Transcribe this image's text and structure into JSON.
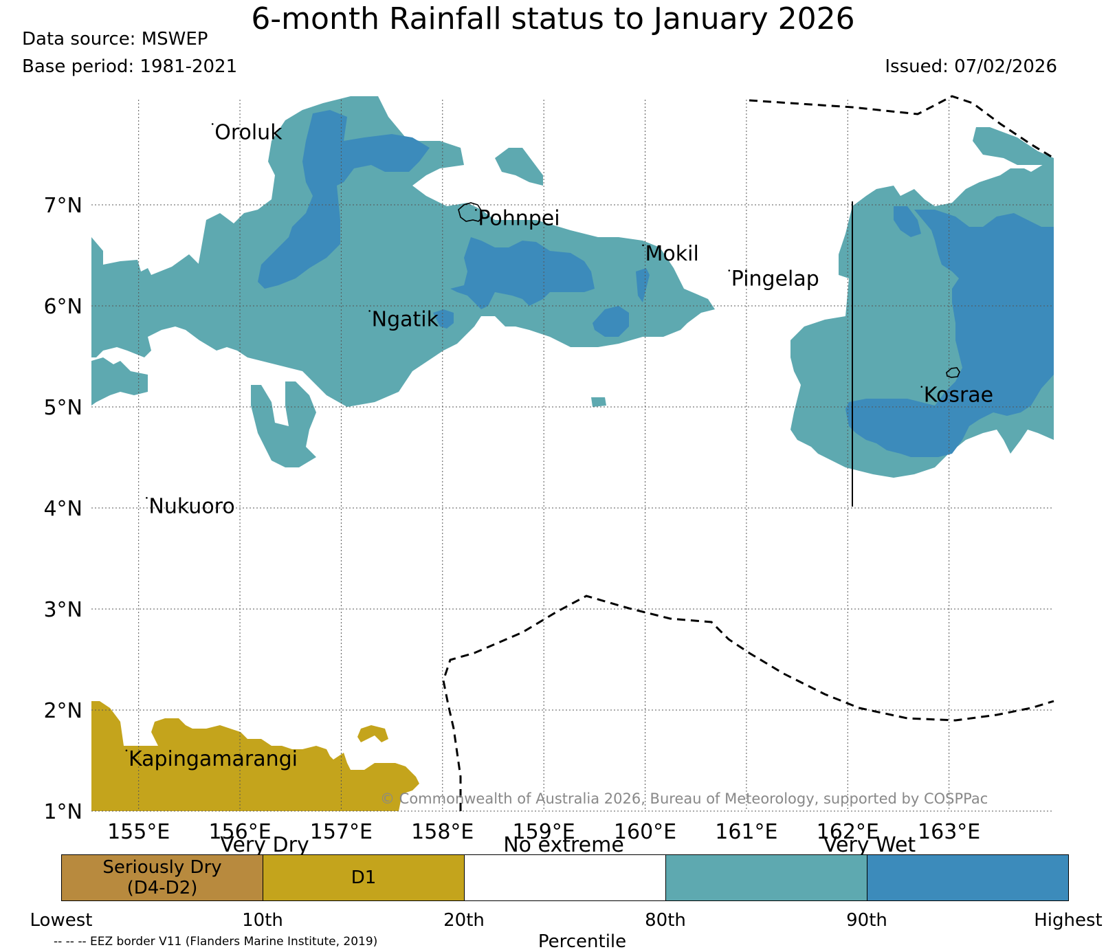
{
  "title": "6-month Rainfall status to January 2026",
  "data_source": "Data source: MSWEP",
  "base_period": "Base period: 1981-2021",
  "issued": "Issued: 07/02/2026",
  "copyright": "© Commonwealth of Australia 2026, Bureau of Meteorology, supported by COSPPac",
  "eez_note": "-- -- -- EEZ border V11 (Flanders Marine Institute, 2019)",
  "map": {
    "lon_range": [
      154.5,
      164.0
    ],
    "lat_range": [
      1.0,
      8.0
    ],
    "lon_ticks": [
      "155°E",
      "156°E",
      "157°E",
      "158°E",
      "159°E",
      "160°E",
      "161°E",
      "162°E",
      "163°E"
    ],
    "lat_ticks": [
      "7°N",
      "6°N",
      "5°N",
      "4°N",
      "3°N",
      "2°N",
      "1°N"
    ],
    "grid": true,
    "places": [
      {
        "name": "Oroluk",
        "lon": 155.75,
        "lat": 7.65
      },
      {
        "name": "Pohnpei",
        "lon": 158.35,
        "lat": 6.8
      },
      {
        "name": "Mokil",
        "lon": 160.0,
        "lat": 6.45
      },
      {
        "name": "Pingelap",
        "lon": 160.85,
        "lat": 6.2
      },
      {
        "name": "Ngatik",
        "lon": 157.3,
        "lat": 5.8
      },
      {
        "name": "Kosrae",
        "lon": 162.75,
        "lat": 5.05
      },
      {
        "name": "Nukuoro",
        "lon": 155.1,
        "lat": 3.95
      },
      {
        "name": "Kapingamarangi",
        "lon": 154.9,
        "lat": 1.45
      }
    ]
  },
  "legend": {
    "headings": [
      "Very Dry",
      "No extreme",
      "Very Wet"
    ],
    "categories": [
      {
        "label": "Seriously Dry (D4-D2)",
        "color": "#b88a3e"
      },
      {
        "label": "D1",
        "color": "#c4a41c"
      },
      {
        "label": "",
        "color": "#ffffff"
      },
      {
        "label": "",
        "color": "#5ea9b0"
      },
      {
        "label": "",
        "color": "#3c8bbb"
      }
    ],
    "tick_labels": [
      "Lowest",
      "10th",
      "20th",
      "80th",
      "90th",
      "Highest"
    ],
    "xlabel": "Percentile"
  },
  "colors": {
    "very_wet": "#5ea9b0",
    "highest": "#3c8bbb",
    "d1": "#c4a41c",
    "seriously_dry": "#b88a3e",
    "copyright_text": "#888888"
  }
}
